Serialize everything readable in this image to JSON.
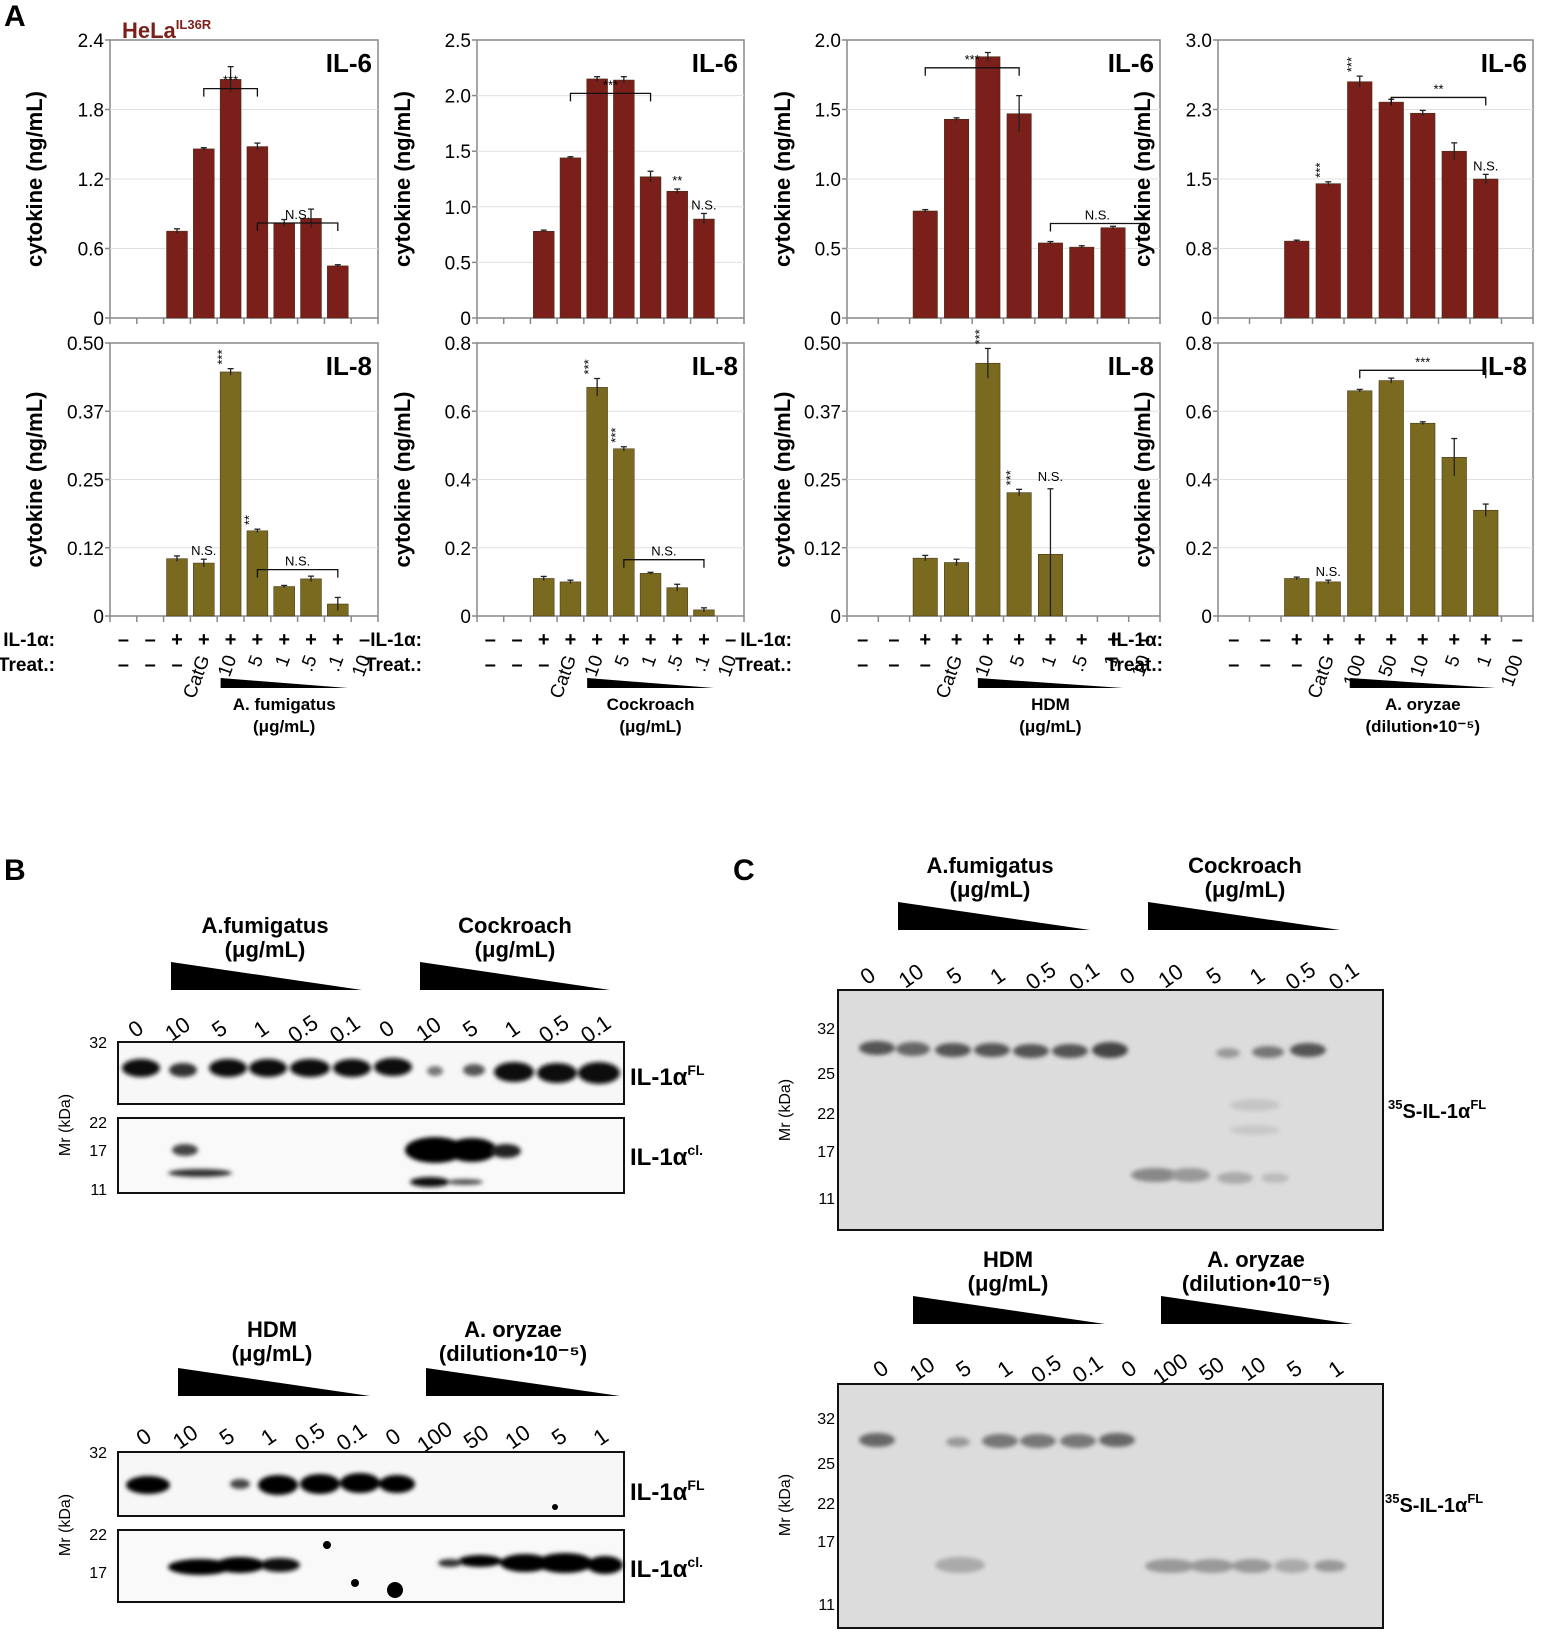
{
  "panels": {
    "A": "A",
    "B": "B",
    "C": "C"
  },
  "cell_line": {
    "base": "HeLa",
    "sup": "IL36R"
  },
  "chart_data": [
    {
      "type": "bar",
      "cytokine": "IL-6",
      "treatment": "A. fumigatus",
      "ylabel": "cytokine (ng/mL)",
      "ylim": [
        0,
        2.4
      ],
      "yticks": [
        "0",
        "0.6",
        "1.2",
        "1.8",
        "2.4"
      ],
      "color": "#7b1f1a",
      "values": [
        null,
        null,
        0.75,
        1.46,
        2.06,
        1.48,
        0.82,
        0.86,
        0.45,
        null
      ],
      "errors": [
        0,
        0,
        0.02,
        0.01,
        0.11,
        0.03,
        0.03,
        0.08,
        0.01,
        0
      ],
      "annotations": [
        {
          "type": "bracket",
          "from": 3,
          "to": 5,
          "text": "***",
          "y": 1.98
        },
        {
          "type": "bracket",
          "from": 5,
          "to": 8,
          "text": "N.S.",
          "y": 0.82
        }
      ]
    },
    {
      "type": "bar",
      "cytokine": "IL-6",
      "treatment": "Cockroach",
      "ylabel": "cytokine (ng/mL)",
      "ylim": [
        0,
        2.5
      ],
      "yticks": [
        "0",
        "0.5",
        "1.0",
        "1.5",
        "2.0",
        "2.5"
      ],
      "color": "#7b1f1a",
      "values": [
        null,
        null,
        0.78,
        1.44,
        2.15,
        2.14,
        1.27,
        1.14,
        0.89,
        null
      ],
      "errors": [
        0,
        0,
        0.01,
        0.01,
        0.02,
        0.03,
        0.05,
        0.02,
        0.05,
        0
      ],
      "annotations": [
        {
          "type": "bracket",
          "from": 3,
          "to": 6,
          "text": "***",
          "y": 2.02
        },
        {
          "type": "star",
          "bar": 7,
          "text": "**",
          "vertical": false
        },
        {
          "type": "text",
          "bar": 8,
          "text": "N.S."
        }
      ]
    },
    {
      "type": "bar",
      "cytokine": "IL-6",
      "treatment": "HDM",
      "ylabel": "cytokine (ng/mL)",
      "ylim": [
        0,
        2.0
      ],
      "yticks": [
        "0",
        "0.5",
        "1.0",
        "1.5",
        "2.0"
      ],
      "color": "#7b1f1a",
      "values": [
        null,
        null,
        0.77,
        1.43,
        1.88,
        1.47,
        0.54,
        0.51,
        0.65,
        null
      ],
      "errors": [
        0,
        0,
        0.01,
        0.01,
        0.03,
        0.13,
        0.01,
        0.01,
        0.01,
        0
      ],
      "annotations": [
        {
          "type": "bracket",
          "from": 2,
          "to": 5,
          "text": "***",
          "y": 1.8
        },
        {
          "type": "bracket",
          "from": 6,
          "to": 9,
          "text": "N.S.",
          "y": 0.68
        }
      ]
    },
    {
      "type": "bar",
      "cytokine": "IL-6",
      "treatment": "A. oryzae",
      "ylabel": "cytokine (ng/mL)",
      "ylim": [
        0,
        3.0
      ],
      "yticks": [
        "0",
        "0.8",
        "1.5",
        "2.3",
        "3.0"
      ],
      "color": "#7b1f1a",
      "values": [
        null,
        null,
        0.83,
        1.45,
        2.55,
        2.33,
        2.21,
        1.8,
        1.5,
        null
      ],
      "errors": [
        0,
        0,
        0.01,
        0.02,
        0.06,
        0.03,
        0.03,
        0.09,
        0.05,
        0
      ],
      "annotations": [
        {
          "type": "star",
          "bar": 3,
          "text": "***",
          "vertical": true
        },
        {
          "type": "star",
          "bar": 4,
          "text": "***",
          "vertical": true
        },
        {
          "type": "bracket",
          "from": 5,
          "to": 8,
          "text": "**",
          "y": 2.38
        },
        {
          "type": "text",
          "bar": 8,
          "text": "N.S."
        }
      ]
    },
    {
      "type": "bar",
      "cytokine": "IL-8",
      "treatment": "A. fumigatus",
      "ylabel": "cytokine (ng/mL)",
      "ylim": [
        0,
        0.5
      ],
      "yticks": [
        "0",
        "0.12",
        "0.25",
        "0.37",
        "0.50"
      ],
      "color": "#7a6a1f",
      "values": [
        null,
        null,
        0.105,
        0.097,
        0.447,
        0.156,
        0.054,
        0.068,
        0.022,
        null
      ],
      "errors": [
        0,
        0,
        0.005,
        0.007,
        0.006,
        0.003,
        0.002,
        0.005,
        0.012,
        0
      ],
      "annotations": [
        {
          "type": "text",
          "bar": 3,
          "text": "N.S."
        },
        {
          "type": "star",
          "bar": 4,
          "text": "***",
          "vertical": true
        },
        {
          "type": "star",
          "bar": 5,
          "text": "**",
          "vertical": true
        },
        {
          "type": "bracket",
          "from": 5,
          "to": 8,
          "text": "N.S.",
          "y": 0.085
        }
      ]
    },
    {
      "type": "bar",
      "cytokine": "IL-8",
      "treatment": "Cockroach",
      "ylabel": "cytokine (ng/mL)",
      "ylim": [
        0,
        0.8
      ],
      "yticks": [
        "0",
        "0.2",
        "0.4",
        "0.6",
        "0.8"
      ],
      "color": "#7a6a1f",
      "values": [
        null,
        null,
        0.11,
        0.1,
        0.67,
        0.49,
        0.125,
        0.083,
        0.018,
        null
      ],
      "errors": [
        0,
        0,
        0.006,
        0.005,
        0.026,
        0.006,
        0.003,
        0.01,
        0.006,
        0
      ],
      "annotations": [
        {
          "type": "star",
          "bar": 4,
          "text": "***",
          "vertical": true
        },
        {
          "type": "star",
          "bar": 5,
          "text": "***",
          "vertical": true
        },
        {
          "type": "bracket",
          "from": 5,
          "to": 8,
          "text": "N.S.",
          "y": 0.165
        }
      ]
    },
    {
      "type": "bar",
      "cytokine": "IL-8",
      "treatment": "HDM",
      "ylabel": "cytokine (ng/mL)",
      "ylim": [
        0,
        0.5
      ],
      "yticks": [
        "0",
        "0.12",
        "0.25",
        "0.37",
        "0.50"
      ],
      "color": "#7a6a1f",
      "values": [
        null,
        null,
        0.106,
        0.098,
        0.463,
        0.226,
        0.113,
        null,
        null,
        null
      ],
      "errors": [
        0,
        0,
        0.005,
        0.006,
        0.027,
        0.006,
        0.12,
        0,
        0,
        0
      ],
      "annotations": [
        {
          "type": "star",
          "bar": 4,
          "text": "***",
          "vertical": true
        },
        {
          "type": "star",
          "bar": 5,
          "text": "***",
          "vertical": true
        },
        {
          "type": "text",
          "bar": 6,
          "text": "N.S.",
          "y": 0.24
        }
      ]
    },
    {
      "type": "bar",
      "cytokine": "IL-8",
      "treatment": "A. oryzae",
      "ylabel": "cytokine (ng/mL)",
      "ylim": [
        0,
        0.8
      ],
      "yticks": [
        "0",
        "0.2",
        "0.4",
        "0.6",
        "0.8"
      ],
      "color": "#7a6a1f",
      "values": [
        null,
        null,
        0.11,
        0.1,
        0.66,
        0.69,
        0.565,
        0.465,
        0.31,
        null
      ],
      "errors": [
        0,
        0,
        0.004,
        0.005,
        0.004,
        0.007,
        0.004,
        0.055,
        0.018,
        0
      ],
      "annotations": [
        {
          "type": "text",
          "bar": 3,
          "text": "N.S."
        },
        {
          "type": "bracket",
          "from": 4,
          "to": 8,
          "text": "***",
          "y": 0.72
        }
      ]
    }
  ],
  "xaxis": {
    "il1a_label": "IL-1α:",
    "treat_label": "Treat.:",
    "il1a": [
      "–",
      "–",
      "+",
      "+",
      "+",
      "+",
      "+",
      "+",
      "+",
      "–"
    ],
    "treat_a": [
      "–",
      "–",
      "–",
      "CatG",
      "10",
      "5",
      "1",
      ".5",
      ".1",
      "10"
    ],
    "treat_b": [
      "–",
      "–",
      "–",
      "CatG",
      "10",
      "5",
      "1",
      ".5",
      ".1",
      "10"
    ],
    "treat_c": [
      "–",
      "–",
      "–",
      "CatG",
      "10",
      "5",
      "1",
      ".5",
      ".1",
      "10"
    ],
    "treat_d": [
      "–",
      "–",
      "–",
      "CatG",
      "100",
      "50",
      "10",
      "5",
      "1",
      "100"
    ],
    "groups": [
      {
        "name": "A. fumigatus",
        "unit": "(μg/mL)"
      },
      {
        "name": "Cockroach",
        "unit": "(μg/mL)"
      },
      {
        "name": "HDM",
        "unit": "(μg/mL)"
      },
      {
        "name": "A. oryzae",
        "unit": "(dilution•10⁻⁵)"
      }
    ]
  },
  "blots": {
    "mr_label": "Mr (kDa)",
    "il1a": "IL-1α",
    "fl": "FL",
    "cl": "cl.",
    "s35": "35",
    "s_rest": "S-IL-1α",
    "b_top": {
      "g1": {
        "name": "A.fumigatus",
        "unit": "(μg/mL)"
      },
      "g2": {
        "name": "Cockroach",
        "unit": "(μg/mL)"
      },
      "lanes": [
        "0",
        "10",
        "5",
        "1",
        "0.5",
        "0.1",
        "0",
        "10",
        "5",
        "1",
        "0.5",
        "0.1"
      ],
      "mr_top": [
        "32"
      ],
      "mr_bottom": [
        "22",
        "17",
        "11"
      ]
    },
    "b_bottom": {
      "g1": {
        "name": "HDM",
        "unit": "(μg/mL)"
      },
      "g2": {
        "name": "A. oryzae",
        "unit": "(dilution•10⁻⁵)"
      },
      "lanes": [
        "0",
        "10",
        "5",
        "1",
        "0.5",
        "0.1",
        "0",
        "100",
        "50",
        "10",
        "5",
        "1"
      ],
      "mr_top": [
        "32"
      ],
      "mr_bottom": [
        "22",
        "17"
      ]
    },
    "c_top": {
      "g1": {
        "name": "A.fumigatus",
        "unit": "(μg/mL)"
      },
      "g2": {
        "name": "Cockroach",
        "unit": "(μg/mL)"
      },
      "lanes": [
        "0",
        "10",
        "5",
        "1",
        "0.5",
        "0.1",
        "0",
        "10",
        "5",
        "1",
        "0.5",
        "0.1"
      ],
      "mr": [
        "32",
        "25",
        "22",
        "17",
        "11"
      ]
    },
    "c_bottom": {
      "g1": {
        "name": "HDM",
        "unit": "(μg/mL)"
      },
      "g2": {
        "name": "A. oryzae",
        "unit": "(dilution•10⁻⁵)"
      },
      "lanes": [
        "0",
        "10",
        "5",
        "1",
        "0.5",
        "0.1",
        "0",
        "100",
        "50",
        "10",
        "5",
        "1"
      ],
      "mr": [
        "32",
        "25",
        "22",
        "17",
        "11"
      ]
    }
  }
}
